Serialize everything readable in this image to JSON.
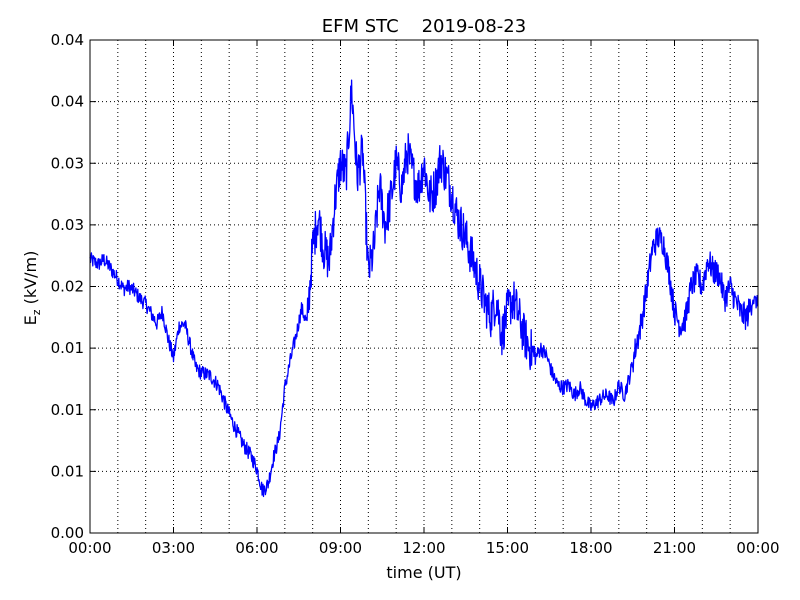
{
  "chart_data": {
    "type": "line",
    "title": "EFM STC    2019-08-23",
    "xlabel": "time (UT)",
    "ylabel_main": "E",
    "ylabel_sub": "z",
    "ylabel_unit": " (kV/m)",
    "x_ticks": [
      "00:00",
      "03:00",
      "06:00",
      "09:00",
      "12:00",
      "15:00",
      "18:00",
      "21:00",
      "00:00"
    ],
    "y_ticks": [
      "0.00",
      "0.01",
      "0.01",
      "0.01",
      "0.02",
      "0.03",
      "0.03",
      "0.04",
      "0.04"
    ],
    "xlim_hours": [
      0,
      24
    ],
    "ylim": [
      0.0,
      0.04
    ],
    "grid": true,
    "series": [
      {
        "color": "#0000ff",
        "x_hours": [
          0,
          0.3,
          0.5,
          0.7,
          1.0,
          1.2,
          1.4,
          1.6,
          1.8,
          2.0,
          2.2,
          2.4,
          2.6,
          2.8,
          3.0,
          3.2,
          3.4,
          3.6,
          3.8,
          4.0,
          4.3,
          4.6,
          4.9,
          5.2,
          5.5,
          5.8,
          6.0,
          6.2,
          6.4,
          6.6,
          6.8,
          7.0,
          7.2,
          7.4,
          7.6,
          7.8,
          8.0,
          8.2,
          8.4,
          8.6,
          8.8,
          9.0,
          9.2,
          9.4,
          9.6,
          9.8,
          10.0,
          10.2,
          10.4,
          10.6,
          10.8,
          11.0,
          11.2,
          11.4,
          11.6,
          11.8,
          12.0,
          12.2,
          12.4,
          12.6,
          12.8,
          13.0,
          13.2,
          13.4,
          13.6,
          13.8,
          14.0,
          14.2,
          14.4,
          14.6,
          14.8,
          15.0,
          15.2,
          15.4,
          15.6,
          15.8,
          16.0,
          16.2,
          16.4,
          16.6,
          16.8,
          17.0,
          17.2,
          17.4,
          17.6,
          17.8,
          18.0,
          18.2,
          18.4,
          18.6,
          18.8,
          19.0,
          19.2,
          19.4,
          19.6,
          19.8,
          20.0,
          20.2,
          20.4,
          20.6,
          20.8,
          21.0,
          21.2,
          21.4,
          21.6,
          21.8,
          22.0,
          22.2,
          22.4,
          22.6,
          22.8,
          23.0,
          23.2,
          23.4,
          23.6,
          23.8,
          24.0
        ],
        "values": [
          0.0222,
          0.0218,
          0.0222,
          0.0216,
          0.0206,
          0.0198,
          0.02,
          0.0196,
          0.019,
          0.0186,
          0.0178,
          0.017,
          0.018,
          0.0158,
          0.0142,
          0.0168,
          0.017,
          0.0152,
          0.0134,
          0.013,
          0.0128,
          0.012,
          0.0102,
          0.0086,
          0.0072,
          0.0062,
          0.0052,
          0.0034,
          0.004,
          0.0062,
          0.0078,
          0.0118,
          0.014,
          0.016,
          0.0182,
          0.017,
          0.0232,
          0.0258,
          0.023,
          0.022,
          0.027,
          0.03,
          0.029,
          0.036,
          0.029,
          0.031,
          0.021,
          0.023,
          0.0282,
          0.025,
          0.027,
          0.03,
          0.028,
          0.031,
          0.0292,
          0.028,
          0.03,
          0.0272,
          0.028,
          0.0304,
          0.029,
          0.0276,
          0.0256,
          0.0246,
          0.0232,
          0.0218,
          0.0202,
          0.0186,
          0.0176,
          0.019,
          0.016,
          0.018,
          0.019,
          0.0176,
          0.016,
          0.015,
          0.0142,
          0.015,
          0.0144,
          0.013,
          0.012,
          0.0118,
          0.012,
          0.0112,
          0.0118,
          0.0108,
          0.0102,
          0.0106,
          0.011,
          0.0112,
          0.0106,
          0.012,
          0.0112,
          0.0128,
          0.015,
          0.017,
          0.0198,
          0.023,
          0.024,
          0.0236,
          0.0212,
          0.018,
          0.0168,
          0.0174,
          0.02,
          0.0208,
          0.02,
          0.0222,
          0.0212,
          0.021,
          0.019,
          0.02,
          0.0188,
          0.0178,
          0.0175,
          0.019,
          0.0186
        ]
      }
    ]
  }
}
